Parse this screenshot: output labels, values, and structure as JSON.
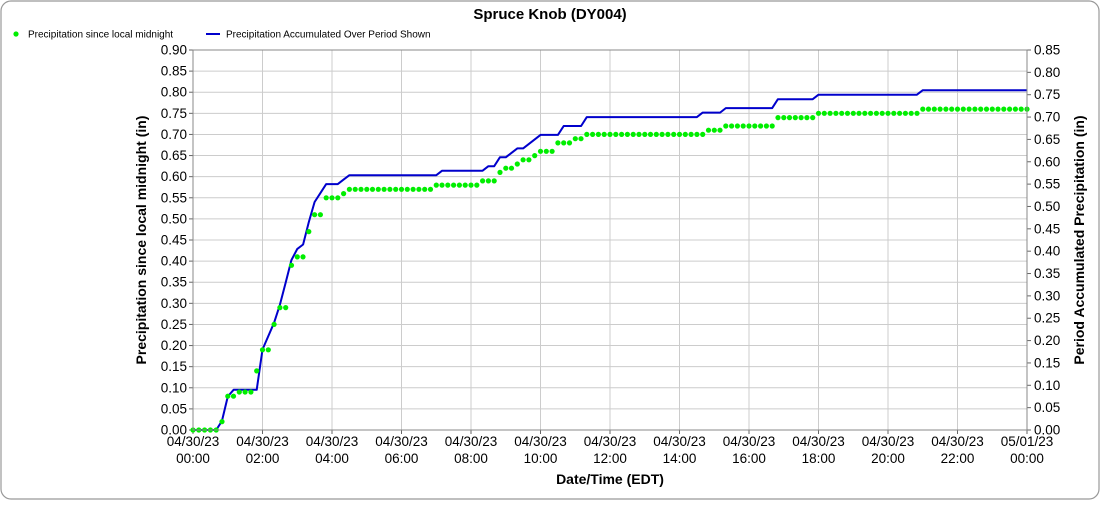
{
  "chart_data": {
    "type": "line",
    "title": "Spruce Knob (DY004)",
    "xlabel": "Date/Time (EDT)",
    "ylabel_left": "Precipitation since local midnight (in)",
    "ylabel_right": "Period Accumulated Precipitation (in)",
    "ylim_left": [
      0,
      0.9
    ],
    "ylim_right": [
      0,
      0.85
    ],
    "yticks_left": [
      "0.00",
      "0.05",
      "0.10",
      "0.15",
      "0.20",
      "0.25",
      "0.30",
      "0.35",
      "0.40",
      "0.45",
      "0.50",
      "0.55",
      "0.60",
      "0.65",
      "0.70",
      "0.75",
      "0.80",
      "0.85",
      "0.90"
    ],
    "yticks_right": [
      "0.00",
      "0.05",
      "0.10",
      "0.15",
      "0.20",
      "0.25",
      "0.30",
      "0.35",
      "0.40",
      "0.45",
      "0.50",
      "0.55",
      "0.60",
      "0.65",
      "0.70",
      "0.75",
      "0.80",
      "0.85"
    ],
    "xlim_hours": [
      0,
      24
    ],
    "xticks": [
      {
        "date": "04/30/23",
        "time": "00:00"
      },
      {
        "date": "04/30/23",
        "time": "02:00"
      },
      {
        "date": "04/30/23",
        "time": "04:00"
      },
      {
        "date": "04/30/23",
        "time": "06:00"
      },
      {
        "date": "04/30/23",
        "time": "08:00"
      },
      {
        "date": "04/30/23",
        "time": "10:00"
      },
      {
        "date": "04/30/23",
        "time": "12:00"
      },
      {
        "date": "04/30/23",
        "time": "14:00"
      },
      {
        "date": "04/30/23",
        "time": "16:00"
      },
      {
        "date": "04/30/23",
        "time": "18:00"
      },
      {
        "date": "04/30/23",
        "time": "20:00"
      },
      {
        "date": "04/30/23",
        "time": "22:00"
      },
      {
        "date": "05/01/23",
        "time": "00:00"
      }
    ],
    "grid": true,
    "legend": "top-left",
    "colors": {
      "since_midnight": "#00ee00",
      "accumulated": "#0000cc",
      "grid": "#cccccc"
    },
    "series": [
      {
        "name": "Precipitation since local midnight",
        "axis": "left",
        "style": "dots",
        "steps": [
          [
            0.0,
            0.0
          ],
          [
            0.833,
            0.02
          ],
          [
            1.0,
            0.08
          ],
          [
            1.167,
            0.09
          ],
          [
            1.833,
            0.14
          ],
          [
            2.0,
            0.19
          ],
          [
            2.167,
            0.22
          ],
          [
            2.333,
            0.25
          ],
          [
            2.5,
            0.29
          ],
          [
            2.667,
            0.35
          ],
          [
            2.833,
            0.39
          ],
          [
            3.0,
            0.41
          ],
          [
            3.167,
            0.42
          ],
          [
            3.333,
            0.47
          ],
          [
            3.5,
            0.51
          ],
          [
            3.667,
            0.53
          ],
          [
            3.833,
            0.55
          ],
          [
            4.333,
            0.56
          ],
          [
            4.5,
            0.57
          ],
          [
            7.0,
            0.58
          ],
          [
            8.333,
            0.59
          ],
          [
            8.667,
            0.61
          ],
          [
            9.0,
            0.62
          ],
          [
            9.167,
            0.63
          ],
          [
            9.5,
            0.64
          ],
          [
            9.667,
            0.65
          ],
          [
            10.0,
            0.66
          ],
          [
            10.5,
            0.68
          ],
          [
            11.0,
            0.69
          ],
          [
            11.333,
            0.7
          ],
          [
            14.667,
            0.71
          ],
          [
            15.333,
            0.72
          ],
          [
            16.833,
            0.74
          ],
          [
            18.0,
            0.75
          ],
          [
            21.0,
            0.76
          ],
          [
            24.0,
            0.76
          ]
        ]
      },
      {
        "name": "Precipitation Accumulated Over Period Shown",
        "axis": "right",
        "style": "line",
        "points": [
          [
            0.0,
            0.0
          ],
          [
            0.667,
            0.0
          ],
          [
            0.833,
            0.02
          ],
          [
            1.0,
            0.075
          ],
          [
            1.167,
            0.09
          ],
          [
            1.833,
            0.09
          ],
          [
            2.0,
            0.18
          ],
          [
            2.167,
            0.21
          ],
          [
            2.333,
            0.24
          ],
          [
            2.5,
            0.28
          ],
          [
            2.667,
            0.33
          ],
          [
            2.833,
            0.38
          ],
          [
            3.0,
            0.405
          ],
          [
            3.167,
            0.415
          ],
          [
            3.333,
            0.465
          ],
          [
            3.5,
            0.51
          ],
          [
            3.667,
            0.53
          ],
          [
            3.833,
            0.55
          ],
          [
            4.167,
            0.55
          ],
          [
            4.333,
            0.56
          ],
          [
            4.5,
            0.57
          ],
          [
            7.0,
            0.57
          ],
          [
            7.167,
            0.58
          ],
          [
            8.333,
            0.58
          ],
          [
            8.5,
            0.59
          ],
          [
            8.667,
            0.59
          ],
          [
            8.833,
            0.61
          ],
          [
            9.0,
            0.61
          ],
          [
            9.167,
            0.62
          ],
          [
            9.333,
            0.63
          ],
          [
            9.5,
            0.63
          ],
          [
            9.667,
            0.64
          ],
          [
            10.0,
            0.66
          ],
          [
            10.5,
            0.66
          ],
          [
            10.667,
            0.68
          ],
          [
            11.167,
            0.68
          ],
          [
            11.333,
            0.7
          ],
          [
            14.5,
            0.7
          ],
          [
            14.667,
            0.71
          ],
          [
            15.167,
            0.71
          ],
          [
            15.333,
            0.72
          ],
          [
            16.667,
            0.72
          ],
          [
            16.833,
            0.74
          ],
          [
            17.833,
            0.74
          ],
          [
            18.0,
            0.75
          ],
          [
            20.833,
            0.75
          ],
          [
            21.0,
            0.76
          ],
          [
            24.0,
            0.76
          ]
        ]
      }
    ]
  }
}
